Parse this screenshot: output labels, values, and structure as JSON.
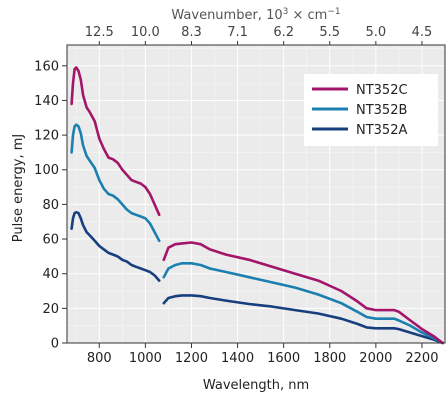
{
  "chart_data": {
    "type": "line",
    "xlabel": "Wavelength, nm",
    "ylabel": "Pulse energy, mJ",
    "xlim": [
      660,
      2300
    ],
    "ylim": [
      0,
      172
    ],
    "xticks": [
      800,
      1000,
      1200,
      1400,
      1600,
      1800,
      2000,
      2200
    ],
    "yticks": [
      0,
      20,
      40,
      60,
      80,
      100,
      120,
      140,
      160
    ],
    "grid": true,
    "legend_position": "top-right",
    "top_axis": {
      "label_main": "Wavenumber, 10",
      "label_exp": "3",
      "label_unit": " × cm",
      "label_unit_exp": "−1",
      "ticks": [
        {
          "label": "12.5",
          "wavelength": 800
        },
        {
          "label": "10.0",
          "wavelength": 1000
        },
        {
          "label": "8.3",
          "wavelength": 1200
        },
        {
          "label": "7.1",
          "wavelength": 1400
        },
        {
          "label": "6.2",
          "wavelength": 1600
        },
        {
          "label": "5.5",
          "wavelength": 1800
        },
        {
          "label": "5.0",
          "wavelength": 2000
        },
        {
          "label": "4.5",
          "wavelength": 2200
        }
      ]
    },
    "series": [
      {
        "name": "NT352C",
        "color": "#a3156b",
        "segments": [
          [
            [
              680,
              138
            ],
            [
              686,
              150
            ],
            [
              693,
              158
            ],
            [
              700,
              159
            ],
            [
              710,
              157
            ],
            [
              720,
              152
            ],
            [
              730,
              143
            ],
            [
              745,
              136
            ],
            [
              760,
              133
            ],
            [
              780,
              128
            ],
            [
              800,
              118
            ],
            [
              820,
              112
            ],
            [
              840,
              107
            ],
            [
              860,
              106
            ],
            [
              880,
              104
            ],
            [
              900,
              100
            ],
            [
              920,
              97
            ],
            [
              940,
              94
            ],
            [
              960,
              93
            ],
            [
              980,
              92
            ],
            [
              1000,
              90
            ],
            [
              1020,
              86
            ],
            [
              1040,
              80
            ],
            [
              1060,
              74
            ]
          ],
          [
            [
              1080,
              48
            ],
            [
              1100,
              55
            ],
            [
              1130,
              57
            ],
            [
              1160,
              57.5
            ],
            [
              1200,
              58
            ],
            [
              1240,
              57
            ],
            [
              1280,
              54
            ],
            [
              1350,
              51
            ],
            [
              1450,
              48
            ],
            [
              1550,
              44
            ],
            [
              1650,
              40
            ],
            [
              1750,
              36
            ],
            [
              1850,
              30
            ],
            [
              1920,
              24
            ],
            [
              1960,
              20
            ],
            [
              2000,
              19
            ],
            [
              2050,
              19
            ],
            [
              2080,
              19
            ],
            [
              2100,
              18
            ],
            [
              2150,
              13
            ],
            [
              2200,
              8
            ],
            [
              2250,
              4
            ],
            [
              2290,
              0
            ]
          ]
        ]
      },
      {
        "name": "NT352B",
        "color": "#1b7fb0",
        "segments": [
          [
            [
              680,
              110
            ],
            [
              686,
              120
            ],
            [
              693,
              125
            ],
            [
              700,
              126
            ],
            [
              710,
              125
            ],
            [
              720,
              121
            ],
            [
              730,
              114
            ],
            [
              745,
              108
            ],
            [
              760,
              105
            ],
            [
              780,
              101
            ],
            [
              800,
              94
            ],
            [
              820,
              89
            ],
            [
              840,
              86
            ],
            [
              860,
              85
            ],
            [
              880,
              83
            ],
            [
              900,
              80
            ],
            [
              920,
              77
            ],
            [
              940,
              75
            ],
            [
              960,
              74
            ],
            [
              980,
              73
            ],
            [
              1000,
              72
            ],
            [
              1020,
              69
            ],
            [
              1040,
              64
            ],
            [
              1060,
              59
            ]
          ],
          [
            [
              1080,
              38
            ],
            [
              1100,
              43
            ],
            [
              1130,
              45
            ],
            [
              1160,
              46
            ],
            [
              1200,
              46
            ],
            [
              1240,
              45
            ],
            [
              1280,
              43
            ],
            [
              1350,
              41
            ],
            [
              1450,
              38
            ],
            [
              1550,
              35
            ],
            [
              1650,
              32
            ],
            [
              1750,
              28
            ],
            [
              1850,
              23
            ],
            [
              1920,
              18
            ],
            [
              1960,
              15
            ],
            [
              2000,
              14
            ],
            [
              2050,
              14
            ],
            [
              2080,
              14
            ],
            [
              2100,
              13
            ],
            [
              2150,
              10
            ],
            [
              2200,
              6
            ],
            [
              2250,
              3
            ],
            [
              2290,
              0
            ]
          ]
        ]
      },
      {
        "name": "NT352A",
        "color": "#173f7e",
        "segments": [
          [
            [
              680,
              66
            ],
            [
              686,
              72
            ],
            [
              693,
              75
            ],
            [
              700,
              75.5
            ],
            [
              710,
              75
            ],
            [
              720,
              72
            ],
            [
              730,
              68
            ],
            [
              745,
              64
            ],
            [
              760,
              62
            ],
            [
              780,
              59
            ],
            [
              800,
              56
            ],
            [
              820,
              54
            ],
            [
              840,
              52
            ],
            [
              860,
              51
            ],
            [
              880,
              50
            ],
            [
              900,
              48
            ],
            [
              920,
              47
            ],
            [
              940,
              45
            ],
            [
              960,
              44
            ],
            [
              980,
              43
            ],
            [
              1000,
              42
            ],
            [
              1020,
              41
            ],
            [
              1040,
              39
            ],
            [
              1060,
              36
            ]
          ],
          [
            [
              1080,
              23
            ],
            [
              1100,
              26
            ],
            [
              1130,
              27
            ],
            [
              1160,
              27.5
            ],
            [
              1200,
              27.5
            ],
            [
              1240,
              27
            ],
            [
              1280,
              26
            ],
            [
              1350,
              24.5
            ],
            [
              1450,
              22.5
            ],
            [
              1550,
              21
            ],
            [
              1650,
              19
            ],
            [
              1750,
              17
            ],
            [
              1850,
              14
            ],
            [
              1920,
              11
            ],
            [
              1960,
              9
            ],
            [
              2000,
              8.5
            ],
            [
              2050,
              8.5
            ],
            [
              2080,
              8.5
            ],
            [
              2100,
              8
            ],
            [
              2150,
              6
            ],
            [
              2200,
              4
            ],
            [
              2250,
              2
            ],
            [
              2290,
              0
            ]
          ]
        ]
      }
    ]
  }
}
